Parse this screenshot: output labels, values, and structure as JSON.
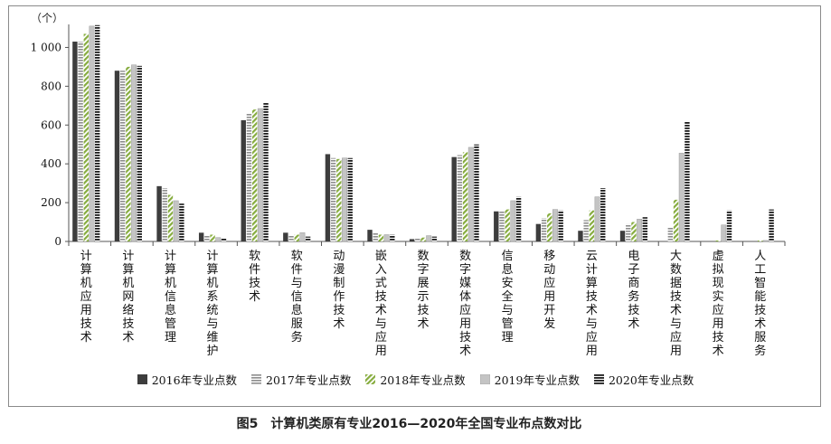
{
  "caption": {
    "figure_no": "图5",
    "title": "计算机类原有专业2016—2020年全国专业布点数对比"
  },
  "chart_data": {
    "type": "bar",
    "unit_label": "（个）",
    "ylim": [
      0,
      1100
    ],
    "yticks": [
      0,
      200,
      400,
      600,
      800,
      1000
    ],
    "ytick_labels": [
      "0",
      "200",
      "400",
      "600",
      "800",
      "1 000"
    ],
    "grid": false,
    "legend_position": "bottom",
    "categories": [
      "计算机应用技术",
      "计算机网络技术",
      "计算机信息管理",
      "计算机系统与维护",
      "软件技术",
      "软件与信息服务",
      "动漫制作技术",
      "嵌入式技术与应用",
      "数字展示技术",
      "数字媒体应用技术",
      "信息安全与管理",
      "移动应用开发",
      "云计算技术与应用",
      "电子商务技术",
      "大数据技术与应用",
      "虚拟现实应用技术",
      "人工智能技术服务"
    ],
    "series": [
      {
        "name": "2016年专业点数",
        "pattern": "solid",
        "values": [
          1030,
          880,
          285,
          45,
          625,
          45,
          450,
          60,
          12,
          435,
          155,
          90,
          55,
          55,
          0,
          0,
          0
        ]
      },
      {
        "name": "2017年专业点数",
        "pattern": "hlines",
        "values": [
          1030,
          880,
          275,
          30,
          660,
          30,
          430,
          45,
          15,
          445,
          160,
          120,
          110,
          90,
          70,
          0,
          0
        ]
      },
      {
        "name": "2018年专业点数",
        "pattern": "diag",
        "values": [
          1070,
          900,
          240,
          35,
          680,
          35,
          425,
          35,
          20,
          460,
          165,
          145,
          160,
          100,
          215,
          5,
          5
        ]
      },
      {
        "name": "2019年专业点数",
        "pattern": "light",
        "values": [
          1110,
          910,
          210,
          20,
          685,
          45,
          430,
          35,
          30,
          485,
          210,
          165,
          230,
          115,
          455,
          85,
          5
        ]
      },
      {
        "name": "2020年专业点数",
        "pattern": "dashes",
        "values": [
          1115,
          905,
          195,
          15,
          715,
          25,
          430,
          35,
          25,
          500,
          230,
          160,
          275,
          125,
          620,
          160,
          165
        ]
      }
    ],
    "colors": {
      "solid": "#3d3d3d",
      "hlines": "#9a9a9a",
      "diag": "#8db04a",
      "light": "#bdbdbd",
      "dashes": "#1f1f1f",
      "axis": "#555555"
    }
  }
}
